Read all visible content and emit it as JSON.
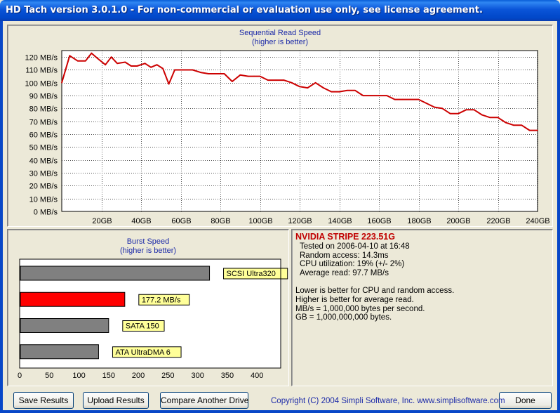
{
  "window": {
    "title": "HD Tach version 3.0.1.0  - For non-commercial or evaluation use only, see license agreement."
  },
  "read_chart": {
    "title": "Sequential Read Speed",
    "subtitle": "(higher is better)"
  },
  "burst_chart": {
    "title": "Burst Speed",
    "subtitle": "(higher is better)"
  },
  "chart_data": [
    {
      "type": "line",
      "title": "Sequential Read Speed",
      "subtitle": "(higher is better)",
      "x_unit": "GB",
      "y_unit": "MB/s",
      "xlim": [
        0,
        240
      ],
      "ylim": [
        0,
        125
      ],
      "x_ticks": [
        "20GB",
        "40GB",
        "60GB",
        "80GB",
        "100GB",
        "120GB",
        "140GB",
        "160GB",
        "180GB",
        "200GB",
        "220GB",
        "240GB"
      ],
      "y_ticks": [
        "0 MB/s",
        "10 MB/s",
        "20 MB/s",
        "30 MB/s",
        "40 MB/s",
        "50 MB/s",
        "60 MB/s",
        "70 MB/s",
        "80 MB/s",
        "90 MB/s",
        "100 MB/s",
        "110 MB/s",
        "120 MB/s"
      ],
      "grid": true,
      "line_color": "#cc0000",
      "series": [
        {
          "x": [
            0,
            4,
            8,
            12,
            15,
            18,
            22,
            25,
            28,
            32,
            35,
            38,
            42,
            45,
            48,
            51,
            54,
            57,
            59,
            62,
            66,
            70,
            74,
            78,
            82,
            86,
            90,
            94,
            97,
            100,
            104,
            108,
            112,
            116,
            120,
            124,
            128,
            132,
            136,
            140,
            144,
            148,
            152,
            156,
            160,
            164,
            168,
            172,
            176,
            180,
            184,
            188,
            192,
            196,
            200,
            204,
            208,
            212,
            216,
            220,
            224,
            228,
            232,
            236,
            240
          ],
          "y": [
            100,
            121,
            117,
            117,
            123,
            119,
            114,
            120,
            115,
            116,
            113,
            113,
            115,
            112,
            114,
            111,
            99,
            110,
            110,
            110,
            110,
            108,
            107,
            107,
            107,
            101,
            106,
            105,
            105,
            105,
            102,
            102,
            102,
            100,
            97,
            96,
            100,
            96,
            93,
            93,
            94,
            94,
            90,
            90,
            90,
            90,
            87,
            87,
            87,
            87,
            84,
            81,
            80,
            76,
            76,
            79,
            79,
            75,
            73,
            73,
            69,
            67,
            67,
            63,
            63
          ]
        }
      ]
    },
    {
      "type": "bar",
      "orientation": "horizontal",
      "title": "Burst Speed",
      "subtitle": "(higher is better)",
      "x_unit": "MB/s",
      "xlim": [
        0,
        440
      ],
      "x_ticks": [
        "0",
        "50",
        "100",
        "150",
        "200",
        "250",
        "300",
        "350",
        "400"
      ],
      "categories": [
        "SCSI Ultra320",
        "177.2 MB/s",
        "SATA 150",
        "ATA UltraDMA 6"
      ],
      "values": [
        320,
        177.2,
        150,
        133
      ],
      "colors": [
        "#808080",
        "#ff0000",
        "#808080",
        "#808080"
      ]
    }
  ],
  "info": {
    "drive_name": "NVIDIA STRIPE 223.51G",
    "tested_on": "Tested on 2006-04-10 at 16:48",
    "random_access": "Random access: 14.3ms",
    "cpu_utilization": "CPU utilization: 19% (+/- 2%)",
    "average_read": "Average read: 97.7 MB/s",
    "note_cpu": "Lower is better for CPU and random access.",
    "note_avg": "Higher is better for average read.",
    "note_mbs": "MB/s = 1,000,000 bytes per second.",
    "note_gb": "GB = 1,000,000,000 bytes."
  },
  "buttons": {
    "save": "Save Results",
    "upload": "Upload Results",
    "compare": "Compare Another Drive",
    "done": "Done"
  },
  "footer": {
    "copyright": "Copyright (C) 2004 Simpli Software, Inc. www.simplisoftware.com"
  }
}
